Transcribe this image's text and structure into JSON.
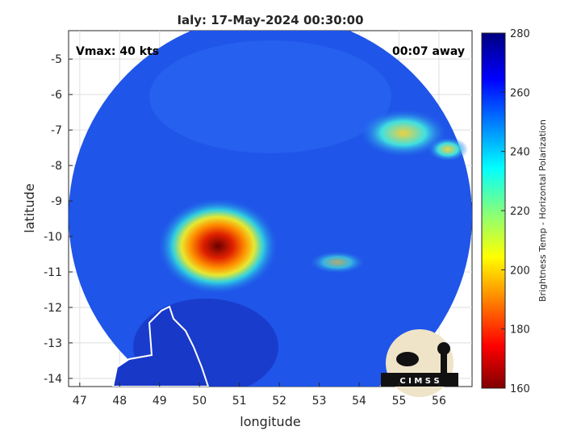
{
  "title": "Ialy: 17-May-2024 00:30:00",
  "annotations": {
    "intensity": "Vmax: 40 kts",
    "time_offset": "00:07 away"
  },
  "axes": {
    "xlabel": "longitude",
    "ylabel": "latitude",
    "xlim": [
      46.72,
      56.83
    ],
    "xticks": [
      47,
      48,
      49,
      50,
      51,
      52,
      53,
      54,
      55,
      56
    ],
    "ylim": [
      -14.23,
      -4.2
    ],
    "yticks": [
      -5,
      -6,
      -7,
      -8,
      -9,
      -10,
      -11,
      -12,
      -13,
      -14
    ]
  },
  "colorbar": {
    "label": "Brightness Temp - Horizontal Polarization",
    "lim": [
      160,
      280
    ],
    "ticks": [
      160,
      180,
      200,
      220,
      240,
      260,
      280
    ]
  },
  "logo": "C I M S S"
}
